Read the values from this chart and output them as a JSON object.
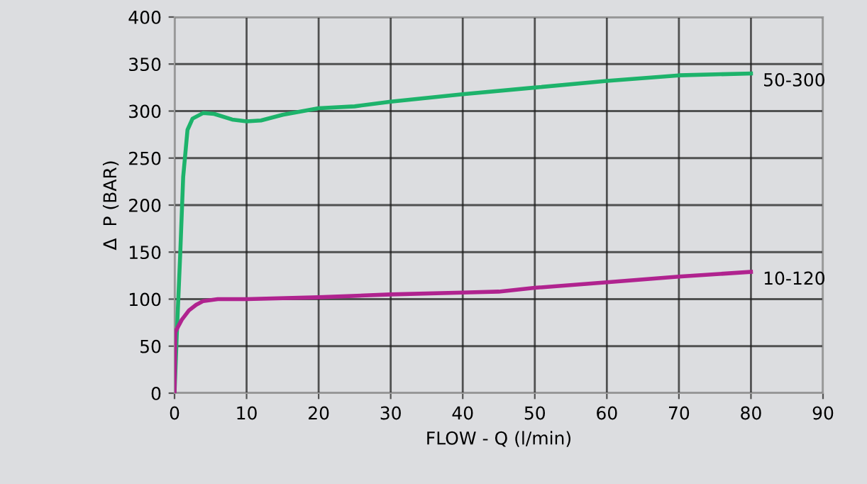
{
  "chart_data": {
    "type": "line",
    "xlabel": "FLOW - Q (l/min)",
    "ylabel": "Δ  P (BAR)",
    "xlim": [
      0,
      90
    ],
    "ylim": [
      0,
      400
    ],
    "xticks": [
      0,
      10,
      20,
      30,
      40,
      50,
      60,
      70,
      80,
      90
    ],
    "yticks": [
      0,
      50,
      100,
      150,
      200,
      250,
      300,
      350,
      400
    ],
    "grid": true,
    "legend": false,
    "marker": "none",
    "line_style": "solid",
    "series": [
      {
        "name": "50-300",
        "color": "#1db36b",
        "x": [
          0,
          0.3,
          0.8,
          1.2,
          1.8,
          2.5,
          4,
          5.5,
          8,
          10,
          12,
          15,
          20,
          25,
          30,
          40,
          50,
          60,
          70,
          80
        ],
        "values": [
          0,
          60,
          150,
          230,
          280,
          292,
          298,
          297,
          291,
          289,
          290,
          296,
          303,
          305,
          310,
          318,
          325,
          332,
          338,
          340
        ]
      },
      {
        "name": "10-120",
        "color": "#b0238f",
        "x": [
          0,
          0.1,
          1,
          2,
          3,
          4,
          6,
          10,
          20,
          30,
          40,
          45,
          50,
          60,
          70,
          80
        ],
        "values": [
          0,
          65,
          78,
          88,
          94,
          98,
          100,
          100,
          102,
          105,
          107,
          108,
          112,
          118,
          124,
          129
        ]
      }
    ]
  }
}
